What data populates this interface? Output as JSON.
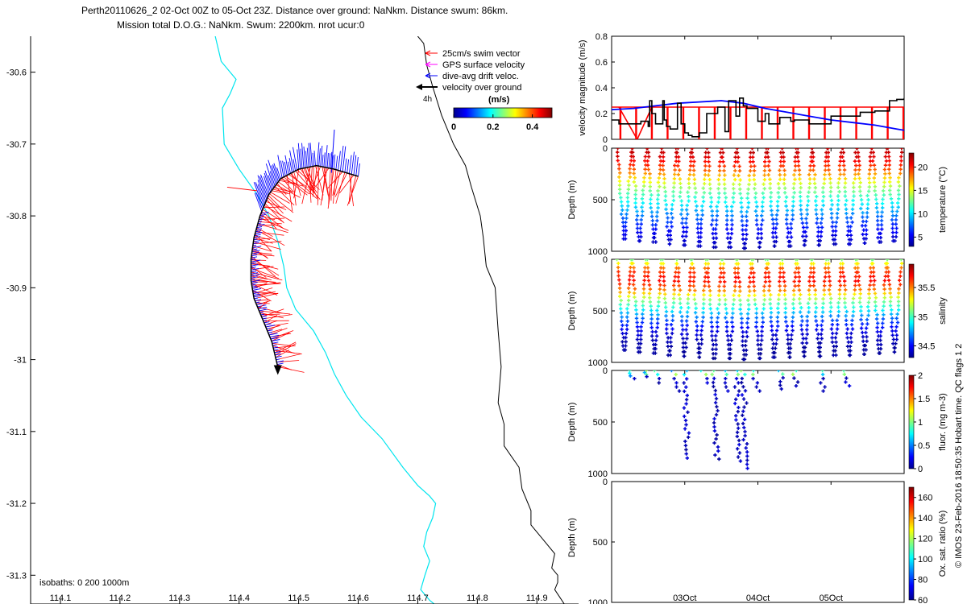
{
  "title": {
    "line1": "Perth20110626_2 02-Oct 00Z to 05-Oct 23Z. Distance over ground: NaNkm. Distance swum: 86km.",
    "line2": "Mission total D.O.G.: NaNkm. Swum: 2200km. nrot ucur:0"
  },
  "side_label": "© IMOS 23-Feb-2016 18:50:35 Hobart time. QC flags 1  2",
  "colors": {
    "swim": "#ff0000",
    "gps": "#ff00ff",
    "drift": "#0000ff",
    "ground": "#000000",
    "isobath_200": "#00e5ee",
    "isobath_1000": "#000000"
  },
  "chart_data": [
    {
      "id": "map",
      "type": "line",
      "xlim": [
        114.05,
        114.97
      ],
      "ylim": [
        -31.34,
        -30.55
      ],
      "xticks": [
        "114.1",
        "114.2",
        "114.3",
        "114.4",
        "114.5",
        "114.6",
        "114.7",
        "114.8",
        "114.9"
      ],
      "yticks": [
        "-30.6",
        "-30.7",
        "-30.8",
        "-30.9",
        "-31",
        "-31.1",
        "-31.2",
        "-31.3"
      ],
      "legend": [
        "25cm/s swim vector",
        "GPS surface velocity",
        "dive-avg drift veloc.",
        "velocity over ground"
      ],
      "legend_time_label": "4h",
      "colorbar": {
        "title": "(m/s)",
        "ticks": [
          "0",
          "0.2",
          "0.4"
        ],
        "range": [
          0,
          0.5
        ]
      },
      "isobath_label": "isobaths: 0   200  1000m",
      "stray_label": "Depth (m)",
      "glider_track": {
        "lon": [
          114.6,
          114.56,
          114.53,
          114.5,
          114.47,
          114.45,
          114.435,
          114.425,
          114.42,
          114.42,
          114.425,
          114.44,
          114.455,
          114.465
        ],
        "lat": [
          -30.745,
          -30.735,
          -30.73,
          -30.735,
          -30.748,
          -30.77,
          -30.8,
          -30.83,
          -30.86,
          -30.89,
          -30.915,
          -30.945,
          -30.975,
          -31.01
        ]
      },
      "isobath_200": {
        "lon": [
          114.36,
          114.37,
          114.385,
          114.395,
          114.385,
          114.372,
          114.375,
          114.4,
          114.43,
          114.45,
          114.465,
          114.475,
          114.48,
          114.495,
          114.525,
          114.545,
          114.56,
          114.58,
          114.605,
          114.64,
          114.675,
          114.7,
          114.72,
          114.73,
          114.725,
          114.715,
          114.71,
          114.72,
          114.712,
          114.705,
          114.72,
          114.735
        ],
        "lat": [
          -30.55,
          -30.585,
          -30.6,
          -30.61,
          -30.63,
          -30.65,
          -30.7,
          -30.735,
          -30.77,
          -30.8,
          -30.835,
          -30.87,
          -30.9,
          -30.93,
          -30.96,
          -30.99,
          -31.02,
          -31.05,
          -31.08,
          -31.11,
          -31.15,
          -31.175,
          -31.19,
          -31.2,
          -31.22,
          -31.24,
          -31.26,
          -31.28,
          -31.3,
          -31.32,
          -31.335,
          -31.345
        ]
      },
      "isobath_1000": {
        "lon": [
          114.7,
          114.71,
          114.715,
          114.725,
          114.74,
          114.76,
          114.78,
          114.79,
          114.805,
          114.81,
          114.815,
          114.83,
          114.835,
          114.84,
          114.835,
          114.845,
          114.845,
          114.87,
          114.875,
          114.89,
          114.89,
          114.91,
          114.93,
          114.925,
          114.935,
          114.935,
          114.93,
          114.95
        ],
        "lat": [
          -30.55,
          -30.56,
          -30.59,
          -30.62,
          -30.66,
          -30.7,
          -30.73,
          -30.76,
          -30.8,
          -30.83,
          -30.87,
          -30.9,
          -30.96,
          -31.01,
          -31.06,
          -31.09,
          -31.12,
          -31.15,
          -31.18,
          -31.21,
          -31.23,
          -31.25,
          -31.27,
          -31.29,
          -31.3,
          -31.31,
          -31.32,
          -31.345
        ]
      }
    },
    {
      "id": "velocity",
      "type": "line",
      "ylabel": "velocity magnitude (m/s)",
      "ylim": [
        0,
        0.8
      ],
      "yticks": [
        "0",
        "0.2",
        "0.4",
        "0.6",
        "0.8"
      ],
      "swim_speed": 0.25,
      "series": [
        {
          "name": "velocity over ground",
          "t": [
            0.0,
            0.1,
            0.4,
            0.5,
            0.52,
            0.55,
            0.6,
            0.7,
            0.72,
            0.75,
            0.8,
            0.9,
            0.95,
            1.0,
            1.05,
            1.1,
            1.2,
            1.3,
            1.45,
            1.55,
            1.6,
            1.7,
            1.75,
            1.8,
            1.85,
            2.0,
            2.1,
            2.15,
            2.3,
            2.45,
            2.5,
            2.7,
            3.0,
            3.4,
            3.6,
            3.8,
            3.9,
            4.0
          ],
          "values": [
            0.15,
            0.12,
            0.14,
            0.1,
            0.3,
            0.2,
            0.12,
            0.3,
            0.15,
            0.1,
            0.08,
            0.28,
            0.12,
            0.05,
            0.03,
            0.02,
            0.05,
            0.2,
            0.25,
            0.06,
            0.3,
            0.18,
            0.32,
            0.26,
            0.24,
            0.14,
            0.2,
            0.12,
            0.17,
            0.14,
            0.15,
            0.12,
            0.18,
            0.21,
            0.22,
            0.3,
            0.31,
            0.32
          ]
        },
        {
          "name": "dive-avg drift velocity",
          "t": [
            0.0,
            0.3,
            0.6,
            0.9,
            1.2,
            1.5,
            1.8,
            2.1,
            2.4,
            2.7,
            3.0,
            3.3,
            3.6,
            3.9,
            4.0
          ],
          "values": [
            0.23,
            0.24,
            0.26,
            0.28,
            0.29,
            0.3,
            0.28,
            0.24,
            0.21,
            0.18,
            0.15,
            0.13,
            0.11,
            0.08,
            0.07
          ]
        }
      ]
    },
    {
      "id": "temperature",
      "type": "scatter",
      "ylabel": "Depth (m)",
      "ylim": [
        1000,
        0
      ],
      "yticks": [
        "0",
        "500",
        "1000"
      ],
      "colorbar": {
        "label": "temperature (°C)",
        "range": [
          3,
          23
        ],
        "ticks": [
          "5",
          "10",
          "15",
          "20"
        ]
      },
      "n_dives": 19,
      "dive_max_depth": [
        880,
        900,
        910,
        930,
        940,
        950,
        960,
        960,
        970,
        960,
        950,
        950,
        940,
        940,
        930,
        930,
        920,
        910,
        900
      ],
      "profile": {
        "depth": [
          0,
          100,
          200,
          300,
          400,
          500,
          600,
          700,
          800,
          900,
          1000
        ],
        "value": [
          22,
          21,
          19,
          16,
          13,
          11,
          9,
          7,
          5.5,
          4.5,
          4
        ]
      }
    },
    {
      "id": "salinity",
      "type": "scatter",
      "ylabel": "Depth (m)",
      "ylim": [
        1000,
        0
      ],
      "yticks": [
        "0",
        "500",
        "1000"
      ],
      "colorbar": {
        "label": "salinity",
        "range": [
          34.3,
          35.9
        ],
        "ticks": [
          "34.5",
          "35",
          "35.5"
        ]
      },
      "n_dives": 19,
      "dive_max_depth": [
        880,
        900,
        910,
        930,
        940,
        950,
        960,
        960,
        970,
        960,
        950,
        950,
        940,
        940,
        930,
        930,
        920,
        910,
        900
      ],
      "profile": {
        "depth": [
          0,
          100,
          200,
          300,
          400,
          500,
          600,
          700,
          800,
          900,
          1000
        ],
        "value": [
          35.1,
          35.6,
          35.7,
          35.5,
          35.1,
          34.85,
          34.6,
          34.45,
          34.38,
          34.35,
          34.35
        ]
      }
    },
    {
      "id": "fluorescence",
      "type": "scatter",
      "ylabel": "Depth (m)",
      "ylim": [
        1000,
        0
      ],
      "yticks": [
        "0",
        "500",
        "1000"
      ],
      "colorbar": {
        "label": "fluor. (mg m-3)",
        "range": [
          0,
          2
        ],
        "ticks": [
          "0",
          "0.5",
          "1",
          "1.5",
          "2"
        ]
      },
      "dives": [
        {
          "t": 0.25,
          "max_depth": 80
        },
        {
          "t": 0.45,
          "max_depth": 60
        },
        {
          "t": 0.6,
          "max_depth": 120
        },
        {
          "t": 0.85,
          "max_depth": 200
        },
        {
          "t": 1.0,
          "max_depth": 850
        },
        {
          "t": 1.25,
          "max_depth": 120
        },
        {
          "t": 1.4,
          "max_depth": 860
        },
        {
          "t": 1.55,
          "max_depth": 200
        },
        {
          "t": 1.7,
          "max_depth": 880
        },
        {
          "t": 1.8,
          "max_depth": 950
        },
        {
          "t": 1.95,
          "max_depth": 200
        },
        {
          "t": 2.3,
          "max_depth": 180
        },
        {
          "t": 2.5,
          "max_depth": 150
        },
        {
          "t": 2.85,
          "max_depth": 200
        },
        {
          "t": 3.2,
          "max_depth": 150
        }
      ]
    },
    {
      "id": "oxygen",
      "type": "scatter",
      "ylabel": "Depth (m)",
      "ylim": [
        1000,
        0
      ],
      "yticks": [
        "0",
        "500",
        "1000"
      ],
      "colorbar": {
        "label": "Ox. sat. ratio (%)",
        "range": [
          60,
          170
        ],
        "ticks": [
          "60",
          "80",
          "100",
          "120",
          "140",
          "160"
        ]
      }
    }
  ],
  "time_axis": {
    "range_days": [
      0,
      4
    ],
    "labels": [
      {
        "t": 1.0,
        "text": "03Oct"
      },
      {
        "t": 2.0,
        "text": "04Oct"
      },
      {
        "t": 3.0,
        "text": "05Oct"
      }
    ]
  }
}
